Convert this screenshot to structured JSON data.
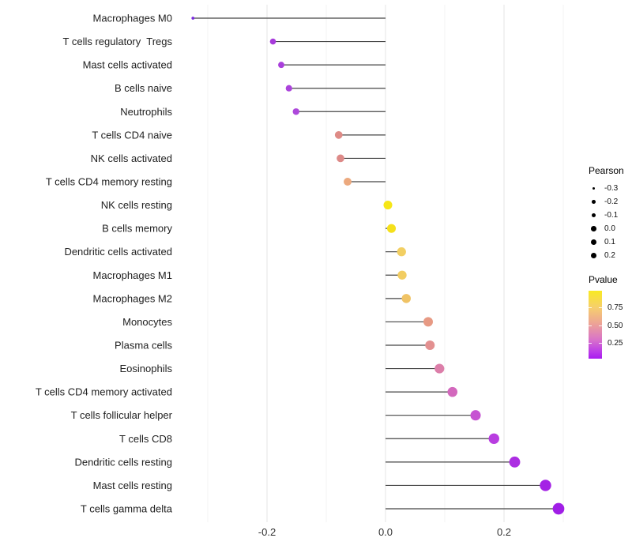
{
  "chart_data": {
    "type": "scatter",
    "variant": "horizontal-lollipop",
    "title": "",
    "xlabel": "",
    "ylabel": "",
    "x_tick_labels": [
      "-0.2",
      "0.0",
      "0.2"
    ],
    "x_tick_values": [
      -0.2,
      0.0,
      0.2
    ],
    "x_minor_grid_values": [
      -0.3,
      -0.1,
      0.1,
      0.3
    ],
    "xlim": [
      -0.35,
      0.32
    ],
    "grid": "vertical-only",
    "baseline_value": 0.0,
    "points": [
      {
        "label": "Macrophages M0",
        "pearson": -0.325,
        "color": "#7B2BDF"
      },
      {
        "label": "T cells regulatory  Tregs",
        "pearson": -0.19,
        "color": "#A73BDB"
      },
      {
        "label": "Mast cells activated",
        "pearson": -0.176,
        "color": "#A93FDB"
      },
      {
        "label": "B cells naive",
        "pearson": -0.163,
        "color": "#AB43DB"
      },
      {
        "label": "Neutrophils",
        "pearson": -0.151,
        "color": "#AD48DB"
      },
      {
        "label": "T cells CD4 naive",
        "pearson": -0.079,
        "color": "#DE8B86"
      },
      {
        "label": "NK cells activated",
        "pearson": -0.076,
        "color": "#DD8A88"
      },
      {
        "label": "T cells CD4 memory resting",
        "pearson": -0.064,
        "color": "#ECA97E"
      },
      {
        "label": "NK cells resting",
        "pearson": 0.004,
        "color": "#F6E616"
      },
      {
        "label": "B cells memory",
        "pearson": 0.01,
        "color": "#F5E01B"
      },
      {
        "label": "Dendritic cells activated",
        "pearson": 0.027,
        "color": "#F2CF63"
      },
      {
        "label": "Macrophages M1",
        "pearson": 0.028,
        "color": "#F2CD62"
      },
      {
        "label": "Macrophages M2",
        "pearson": 0.035,
        "color": "#F0C365"
      },
      {
        "label": "Monocytes",
        "pearson": 0.072,
        "color": "#E79A84"
      },
      {
        "label": "Plasma cells",
        "pearson": 0.075,
        "color": "#E39090"
      },
      {
        "label": "Eosinophils",
        "pearson": 0.091,
        "color": "#DC7EA9"
      },
      {
        "label": "T cells CD4 memory activated",
        "pearson": 0.113,
        "color": "#D368BD"
      },
      {
        "label": "T cells follicular helper",
        "pearson": 0.152,
        "color": "#C653D2"
      },
      {
        "label": "T cells CD8",
        "pearson": 0.183,
        "color": "#B83DE0"
      },
      {
        "label": "Dendritic cells resting",
        "pearson": 0.218,
        "color": "#AC2EE2"
      },
      {
        "label": "Mast cells resting",
        "pearson": 0.27,
        "color": "#A422E5"
      },
      {
        "label": "T cells gamma delta",
        "pearson": 0.292,
        "color": "#A01EE6"
      }
    ],
    "size_legend": {
      "title": "Pearson",
      "entries": [
        {
          "label": "-0.3",
          "r": 1.7
        },
        {
          "label": "-0.2",
          "r": 2.4
        },
        {
          "label": "-0.1",
          "r": 2.9
        },
        {
          "label": "0.0",
          "r": 3.4
        },
        {
          "label": "0.1",
          "r": 3.6
        },
        {
          "label": "0.2",
          "r": 3.9
        }
      ]
    },
    "color_legend": {
      "title": "Pvalue",
      "tick_labels": [
        "0.75",
        "0.50",
        "0.25"
      ],
      "gradient_top_to_bottom": [
        "#F9EA21",
        "#F6CE6E",
        "#ECA099",
        "#D973C9",
        "#BB3BE9",
        "#A91AEF"
      ],
      "gradient_stop_percents": [
        0,
        25,
        50,
        72,
        90,
        100
      ]
    }
  }
}
